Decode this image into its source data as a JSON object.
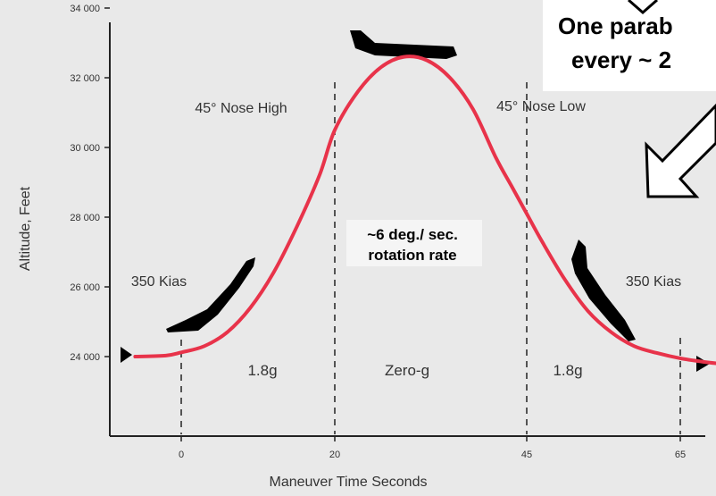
{
  "chart_data": {
    "type": "line",
    "xlabel": "Maneuver Time Seconds",
    "ylabel": "Altitude, Feet",
    "xlim": [
      -8,
      73
    ],
    "ylim": [
      22000,
      34000
    ],
    "x_ticks": [
      "0",
      "20",
      "45",
      "65"
    ],
    "y_ticks": [
      "34 000",
      "32 000",
      "30 000",
      "28 000",
      "26 000",
      "24 000"
    ],
    "grid": false,
    "series": [
      {
        "color": "#e8334a",
        "x": [
          -6,
          -2,
          0,
          3,
          6,
          9,
          12,
          15,
          18,
          20,
          23,
          26,
          29,
          32,
          35,
          38,
          41,
          43,
          45,
          47,
          50,
          53,
          56,
          59,
          62,
          65,
          68,
          70
        ],
        "y": [
          24000,
          24030,
          24120,
          24300,
          24700,
          25400,
          26400,
          27700,
          29200,
          30500,
          31600,
          32300,
          32600,
          32500,
          32000,
          31100,
          29700,
          28900,
          28100,
          27300,
          26200,
          25300,
          24700,
          24300,
          24100,
          23950,
          23850,
          23800
        ]
      }
    ],
    "phase_markers": [
      0,
      20,
      45,
      65
    ],
    "annotations": {
      "nose_high": "45° Nose High",
      "nose_low": "45° Nose Low",
      "speed_left": "350 Kias",
      "speed_right": "350 Kias",
      "g_left": "1.8g",
      "g_center": "Zero-g",
      "g_right": "1.8g",
      "rate_line1": "~6 deg./ sec.",
      "rate_line2": "rotation rate"
    }
  },
  "callout": {
    "line1": "One parab",
    "line2": "every ~ 2"
  }
}
